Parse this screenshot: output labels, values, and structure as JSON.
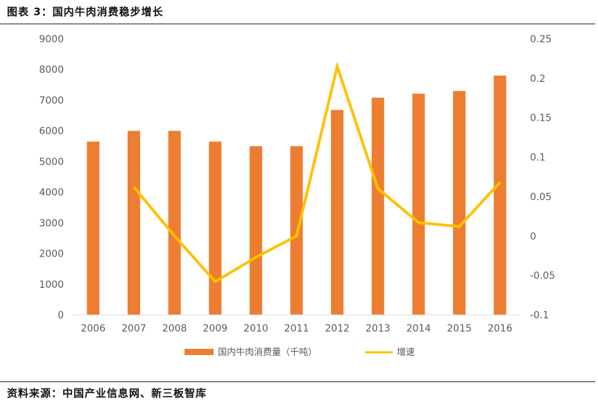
{
  "header": {
    "title": "图表 3：国内牛肉消费稳步增长"
  },
  "footer": {
    "source": "资料来源：中国产业信息网、新三板智库"
  },
  "colors": {
    "bar": "#ED7D31",
    "line": "#FFC000",
    "axis_text": "#595959",
    "grid": "#D9D9D9"
  },
  "chart_data": {
    "type": "bar",
    "categories": [
      "2006",
      "2007",
      "2008",
      "2009",
      "2010",
      "2011",
      "2012",
      "2013",
      "2014",
      "2015",
      "2016"
    ],
    "series": [
      {
        "name": "国内牛肉消费量（千吨）",
        "type": "bar",
        "axis": "left",
        "values": [
          5650,
          6000,
          6000,
          5650,
          5500,
          5500,
          6680,
          7080,
          7210,
          7300,
          7800
        ]
      },
      {
        "name": "增速",
        "type": "line",
        "axis": "right",
        "values": [
          null,
          0.062,
          0.0,
          -0.058,
          -0.027,
          0.0,
          0.215,
          0.06,
          0.017,
          0.012,
          0.068
        ]
      }
    ],
    "y_left": {
      "min": 0,
      "max": 9000,
      "step": 1000,
      "ticks": [
        "0",
        "1000",
        "2000",
        "3000",
        "4000",
        "5000",
        "6000",
        "7000",
        "8000",
        "9000"
      ]
    },
    "y_right": {
      "min": -0.1,
      "max": 0.25,
      "step": 0.05,
      "ticks": [
        "-0.1",
        "-0.05",
        "0",
        "0.05",
        "0.1",
        "0.15",
        "0.2",
        "0.25"
      ]
    },
    "legend_position": "bottom",
    "grid": false
  }
}
